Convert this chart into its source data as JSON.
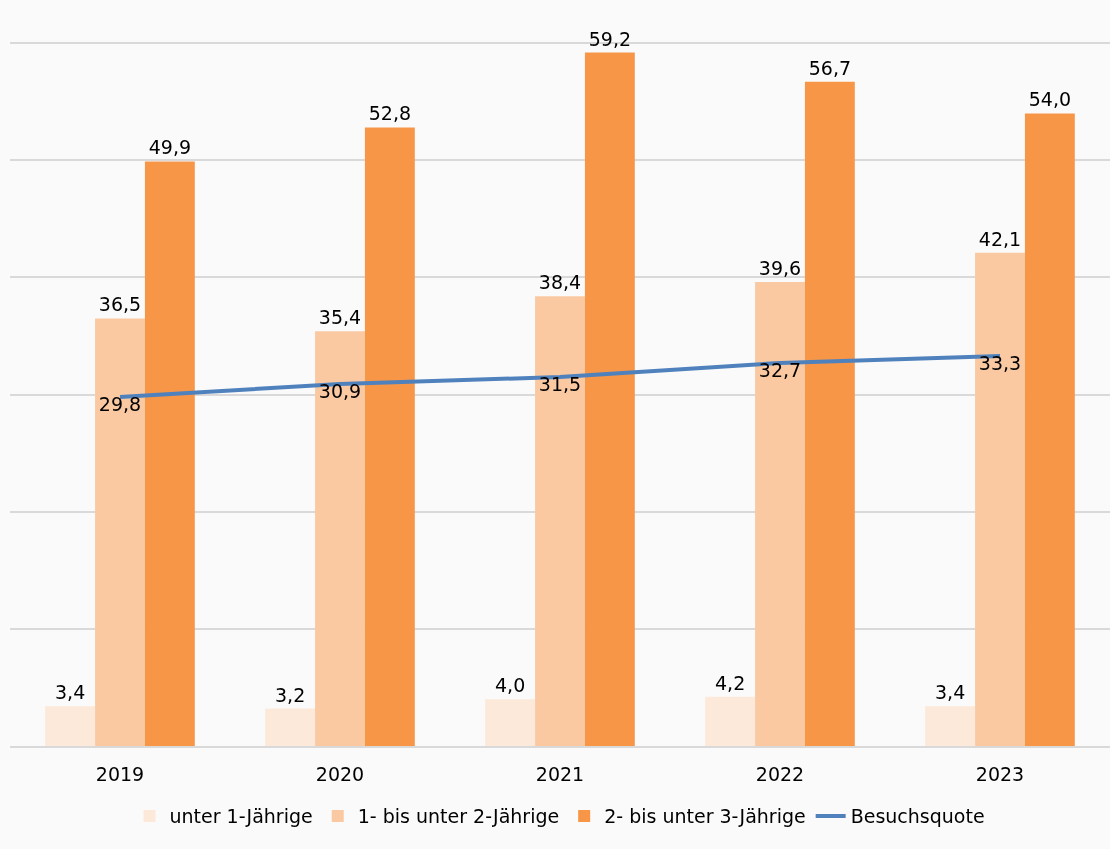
{
  "chart_data": {
    "type": "bar",
    "categories": [
      "2019",
      "2020",
      "2021",
      "2022",
      "2023"
    ],
    "series": [
      {
        "name": "unter 1-Jährige",
        "color": "#fde9d9",
        "values": [
          3.4,
          3.2,
          4.0,
          4.2,
          3.4
        ],
        "value_labels": [
          "3,4",
          "3,2",
          "4,0",
          "4,2",
          "3,4"
        ]
      },
      {
        "name": "1- bis unter 2-Jährige",
        "color": "#fac9a1",
        "values": [
          36.5,
          35.4,
          38.4,
          39.6,
          42.1
        ],
        "value_labels": [
          "36,5",
          "35,4",
          "38,4",
          "39,6",
          "42,1"
        ]
      },
      {
        "name": "2- bis unter 3-Jährige",
        "color": "#f79646",
        "values": [
          49.9,
          52.8,
          59.2,
          56.7,
          54.0
        ],
        "value_labels": [
          "49,9",
          "52,8",
          "59,2",
          "56,7",
          "54,0"
        ]
      },
      {
        "name": "Besuchsquote",
        "type": "line",
        "color": "#4f81bd",
        "values": [
          29.8,
          30.9,
          31.5,
          32.7,
          33.3
        ],
        "value_labels": [
          "29,8",
          "30,9",
          "31,5",
          "32,7",
          "33,3"
        ]
      }
    ],
    "grid": "y",
    "tick_labels": "x",
    "legend": "bottom",
    "marker": "none",
    "line_style": "solid"
  }
}
